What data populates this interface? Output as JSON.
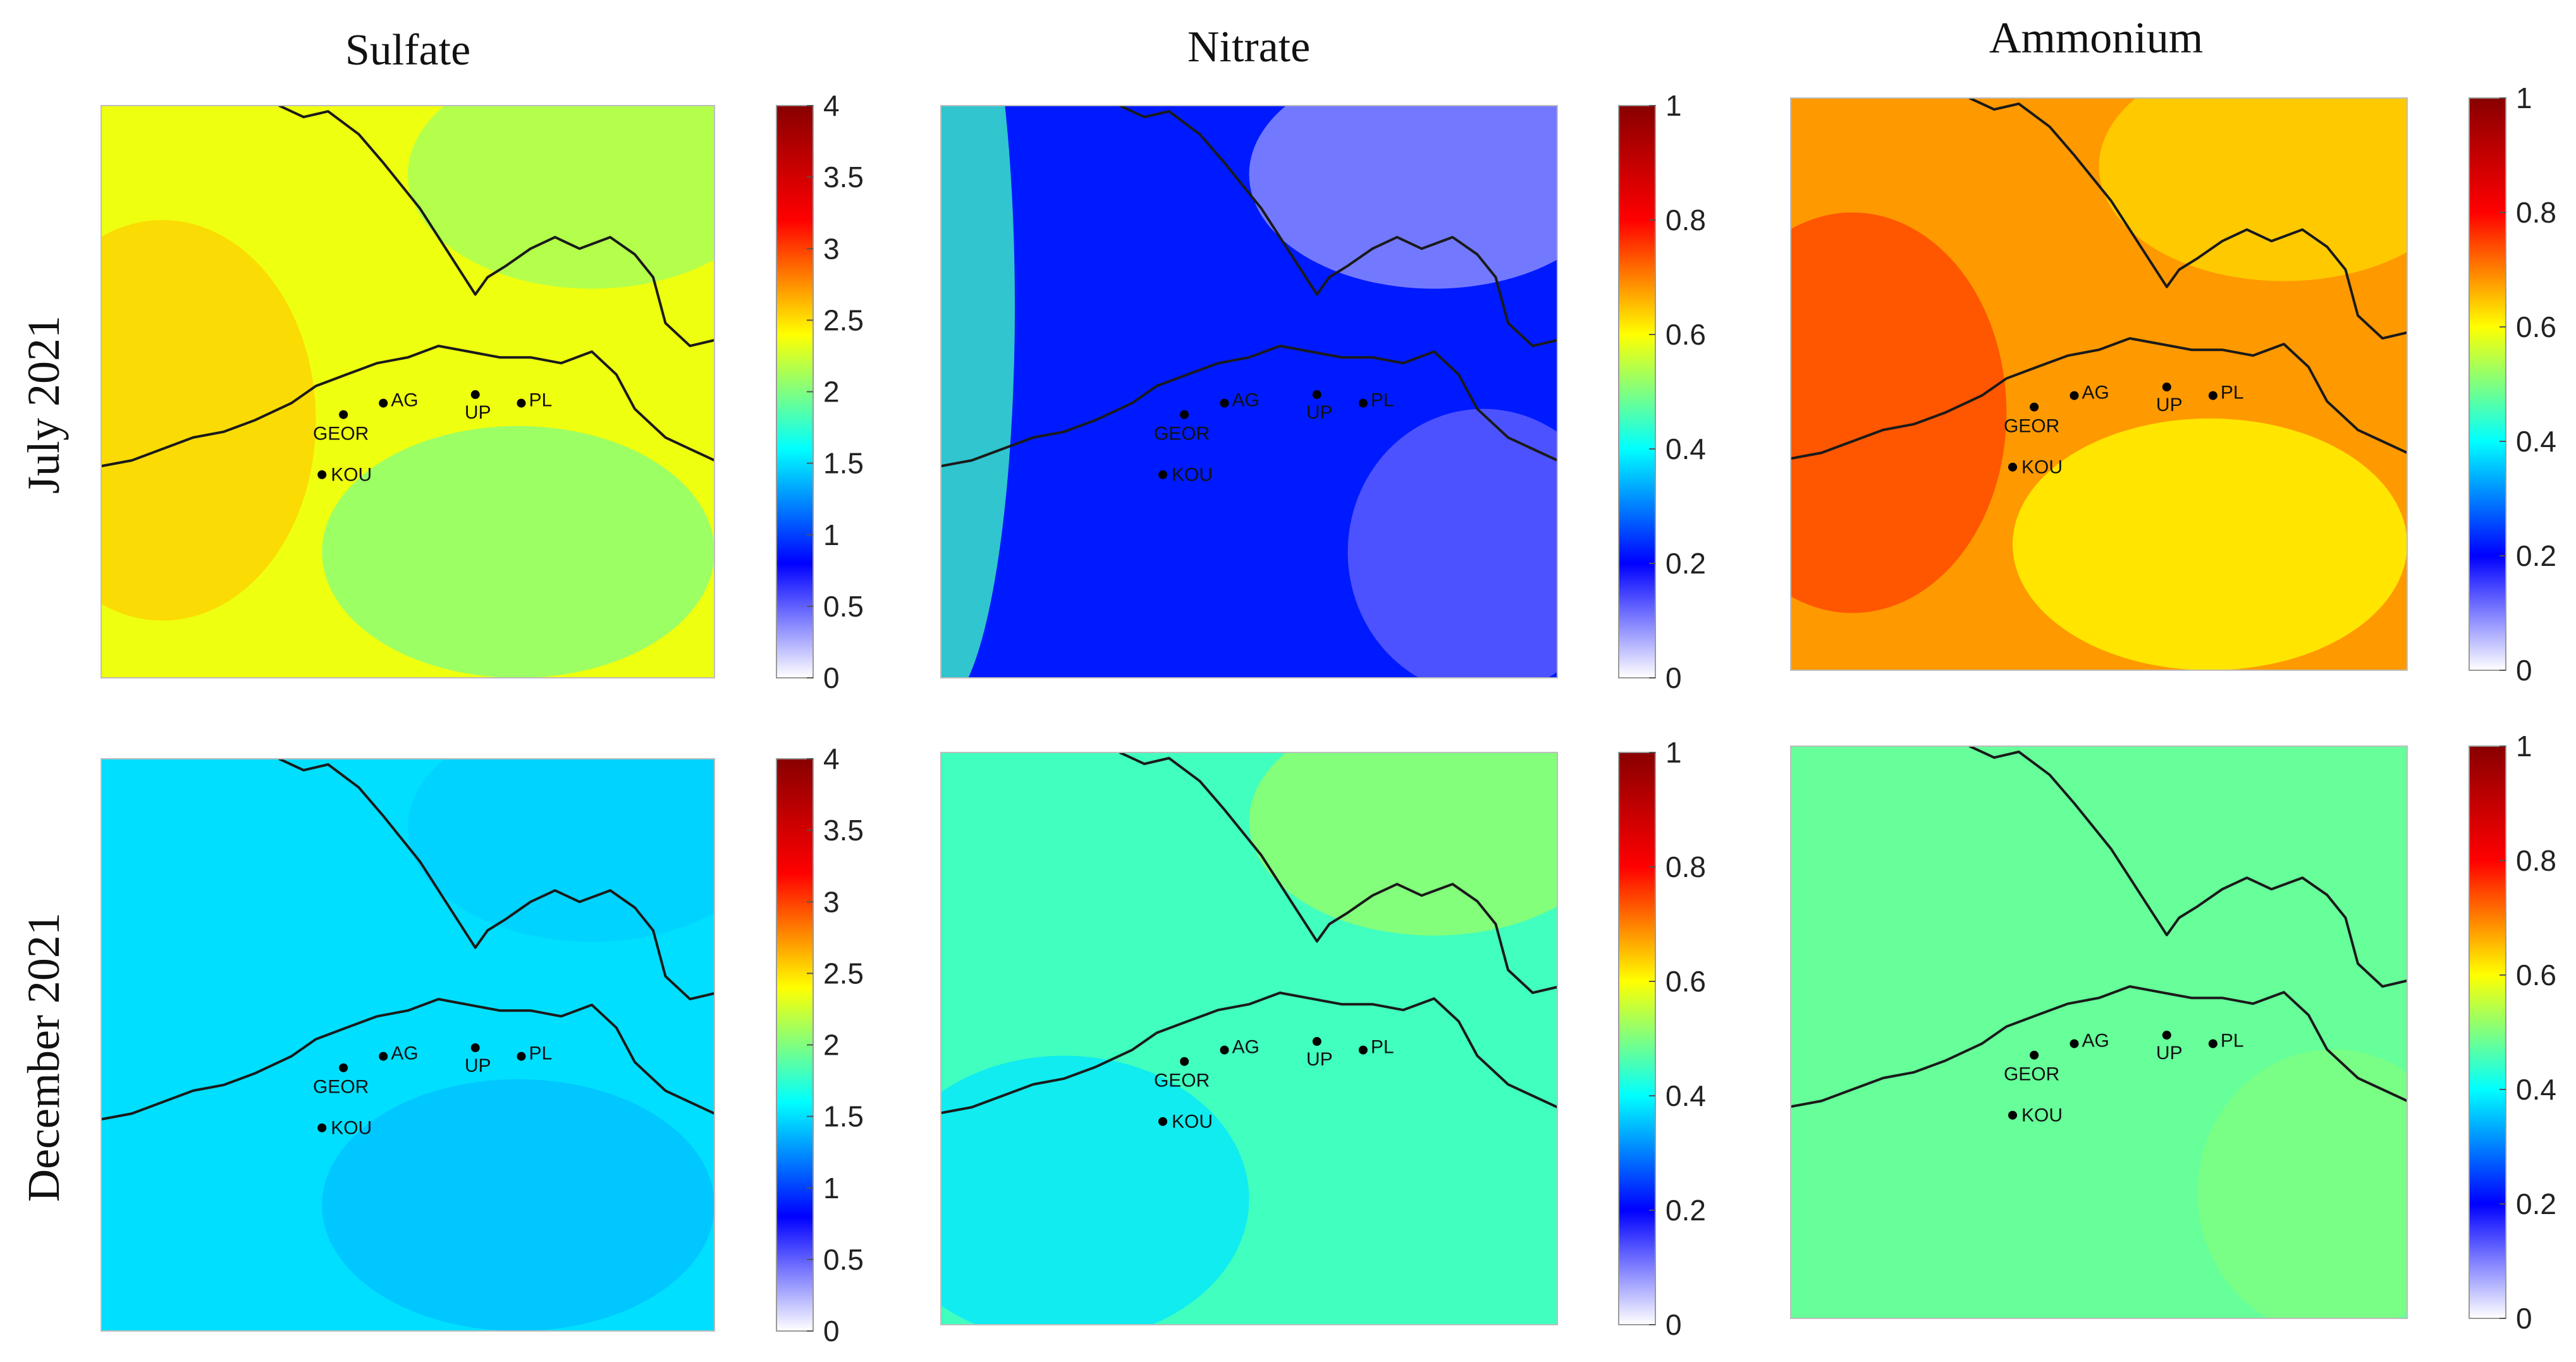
{
  "figure": {
    "column_titles": [
      "Sulfate",
      "Nitrate",
      "Ammonium"
    ],
    "row_titles": [
      "July 2021",
      "December 2021"
    ]
  },
  "sites": [
    "AG",
    "GEOR",
    "UP",
    "PL",
    "KOU"
  ],
  "colormap": [
    "#ffffff",
    "#0000ff",
    "#00ffff",
    "#ffff00",
    "#ff0000",
    "#880000"
  ],
  "chart_data": [
    {
      "type": "heatmap",
      "title": "Sulfate",
      "row": "July 2021",
      "colorbar": {
        "ticks": [
          "4",
          "3.5",
          "3",
          "2.5",
          "2",
          "1.5",
          "1",
          "0.5",
          "0"
        ],
        "range": [
          0,
          4
        ]
      },
      "field": {
        "mean": 2.35,
        "patches": [
          {
            "value": 2.0,
            "where": "lower-center"
          },
          {
            "value": 2.1,
            "where": "upper-right"
          },
          {
            "value": 2.55,
            "where": "left"
          }
        ]
      }
    },
    {
      "type": "heatmap",
      "title": "Nitrate",
      "row": "July 2021",
      "colorbar": {
        "ticks": [
          "1",
          "0.8",
          "0.6",
          "0.4",
          "0.2",
          "0"
        ],
        "range": [
          0,
          1
        ]
      },
      "field": {
        "mean": 0.22,
        "patches": [
          {
            "value": 0.45,
            "where": "left edge"
          },
          {
            "value": 0.12,
            "where": "lower-right"
          },
          {
            "value": 0.08,
            "where": "upper-right"
          }
        ]
      }
    },
    {
      "type": "heatmap",
      "title": "Ammonium",
      "row": "July 2021",
      "colorbar": {
        "ticks": [
          "1",
          "0.8",
          "0.6",
          "0.4",
          "0.2",
          "0"
        ],
        "range": [
          0,
          1
        ]
      },
      "field": {
        "mean": 0.68,
        "patches": [
          {
            "value": 0.75,
            "where": "left"
          },
          {
            "value": 0.6,
            "where": "lower-center"
          },
          {
            "value": 0.63,
            "where": "upper-right"
          }
        ]
      }
    },
    {
      "type": "heatmap",
      "title": "Sulfate",
      "row": "December 2021",
      "colorbar": {
        "ticks": [
          "4",
          "3.5",
          "3",
          "2.5",
          "2",
          "1.5",
          "1",
          "0.5",
          "0"
        ],
        "range": [
          0,
          4
        ]
      },
      "field": {
        "mean": 1.5,
        "patches": [
          {
            "value": 1.4,
            "where": "lower-center"
          },
          {
            "value": 1.45,
            "where": "upper-right"
          }
        ]
      }
    },
    {
      "type": "heatmap",
      "title": "Nitrate",
      "row": "December 2021",
      "colorbar": {
        "ticks": [
          "1",
          "0.8",
          "0.6",
          "0.4",
          "0.2",
          "0"
        ],
        "range": [
          0,
          1
        ]
      },
      "field": {
        "mean": 0.45,
        "patches": [
          {
            "value": 0.38,
            "where": "lower-left"
          },
          {
            "value": 0.52,
            "where": "upper-right"
          }
        ]
      }
    },
    {
      "type": "heatmap",
      "title": "Ammonium",
      "row": "December 2021",
      "colorbar": {
        "ticks": [
          "1",
          "0.8",
          "0.6",
          "0.4",
          "0.2",
          "0"
        ],
        "range": [
          0,
          1
        ]
      },
      "field": {
        "mean": 0.48,
        "patches": [
          {
            "value": 0.5,
            "where": "lower-right"
          }
        ]
      }
    }
  ]
}
